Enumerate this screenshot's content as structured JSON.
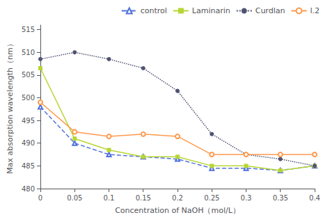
{
  "chart_data": {
    "type": "line",
    "x": [
      0,
      0.05,
      0.1,
      0.15,
      0.2,
      0.25,
      0.3,
      0.35,
      0.4
    ],
    "series": [
      {
        "name": "control",
        "values": [
          498,
          490,
          487.5,
          487,
          486.5,
          484.5,
          484.5,
          484,
          485
        ],
        "marker": "open triangle",
        "line_style": "dashed"
      },
      {
        "name": "Laminarin",
        "values": [
          506.5,
          491,
          488.5,
          487,
          487,
          485,
          485,
          484,
          485
        ],
        "marker": "square",
        "line_style": "solid"
      },
      {
        "name": "Curdlan",
        "values": [
          508.5,
          510,
          508.5,
          506.5,
          501.5,
          492,
          487.5,
          486.5,
          485
        ],
        "marker": "circle",
        "line_style": "dotted"
      },
      {
        "name": "l.2",
        "values": [
          499,
          492.5,
          491.5,
          492,
          491.5,
          487.5,
          487.5,
          487.5,
          487.5
        ],
        "marker": "open circle",
        "line_style": "solid"
      }
    ],
    "xlabel": "Concentration of NaOH（mol/L）",
    "ylabel": "Max absorption wavelength（nm）",
    "xlim": [
      0,
      0.4
    ],
    "xticks": [
      0,
      0.05,
      0.1,
      0.15,
      0.2,
      0.25,
      0.3,
      0.35,
      0.4
    ],
    "ylim": [
      480,
      516
    ],
    "yticks": [
      480,
      485,
      490,
      495,
      500,
      505,
      510,
      515
    ],
    "grid": false,
    "legend": "upper right"
  }
}
